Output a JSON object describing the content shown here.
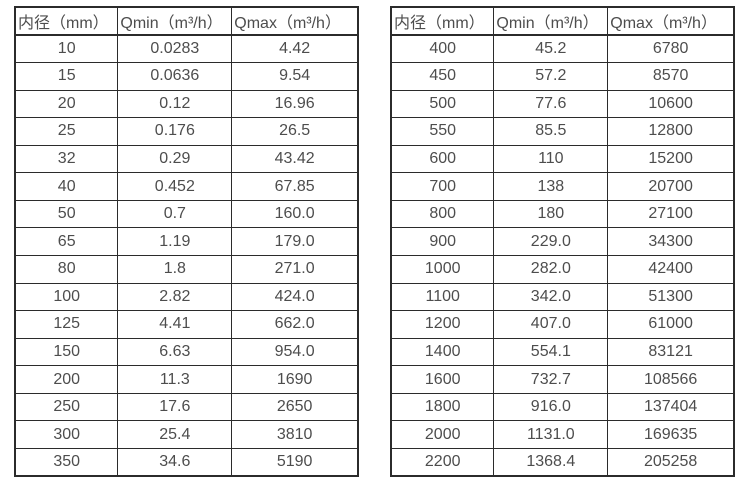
{
  "page": {
    "background": "#ffffff",
    "text_color": "#4d4d4d",
    "border_color": "#2b2b2b"
  },
  "left_table": {
    "headers": [
      "内径（mm）",
      "Qmin（m³/h）",
      "Qmax（m³/h）"
    ],
    "rows": [
      [
        "10",
        "0.0283",
        "4.42"
      ],
      [
        "15",
        "0.0636",
        "9.54"
      ],
      [
        "20",
        "0.12",
        "16.96"
      ],
      [
        "25",
        "0.176",
        "26.5"
      ],
      [
        "32",
        "0.29",
        "43.42"
      ],
      [
        "40",
        "0.452",
        "67.85"
      ],
      [
        "50",
        "0.7",
        "160.0"
      ],
      [
        "65",
        "1.19",
        "179.0"
      ],
      [
        "80",
        "1.8",
        "271.0"
      ],
      [
        "100",
        "2.82",
        "424.0"
      ],
      [
        "125",
        "4.41",
        "662.0"
      ],
      [
        "150",
        "6.63",
        "954.0"
      ],
      [
        "200",
        "11.3",
        "1690"
      ],
      [
        "250",
        "17.6",
        "2650"
      ],
      [
        "300",
        "25.4",
        "3810"
      ],
      [
        "350",
        "34.6",
        "5190"
      ]
    ]
  },
  "right_table": {
    "headers": [
      "内径（mm）",
      "Qmin（m³/h）",
      "Qmax（m³/h）"
    ],
    "rows": [
      [
        "400",
        "45.2",
        "6780"
      ],
      [
        "450",
        "57.2",
        "8570"
      ],
      [
        "500",
        "77.6",
        "10600"
      ],
      [
        "550",
        "85.5",
        "12800"
      ],
      [
        "600",
        "110",
        "15200"
      ],
      [
        "700",
        "138",
        "20700"
      ],
      [
        "800",
        "180",
        "27100"
      ],
      [
        "900",
        "229.0",
        "34300"
      ],
      [
        "1000",
        "282.0",
        "42400"
      ],
      [
        "1100",
        "342.0",
        "51300"
      ],
      [
        "1200",
        "407.0",
        "61000"
      ],
      [
        "1400",
        "554.1",
        "83121"
      ],
      [
        "1600",
        "732.7",
        "108566"
      ],
      [
        "1800",
        "916.0",
        "137404"
      ],
      [
        "2000",
        "1131.0",
        "169635"
      ],
      [
        "2200",
        "1368.4",
        "205258"
      ]
    ]
  }
}
